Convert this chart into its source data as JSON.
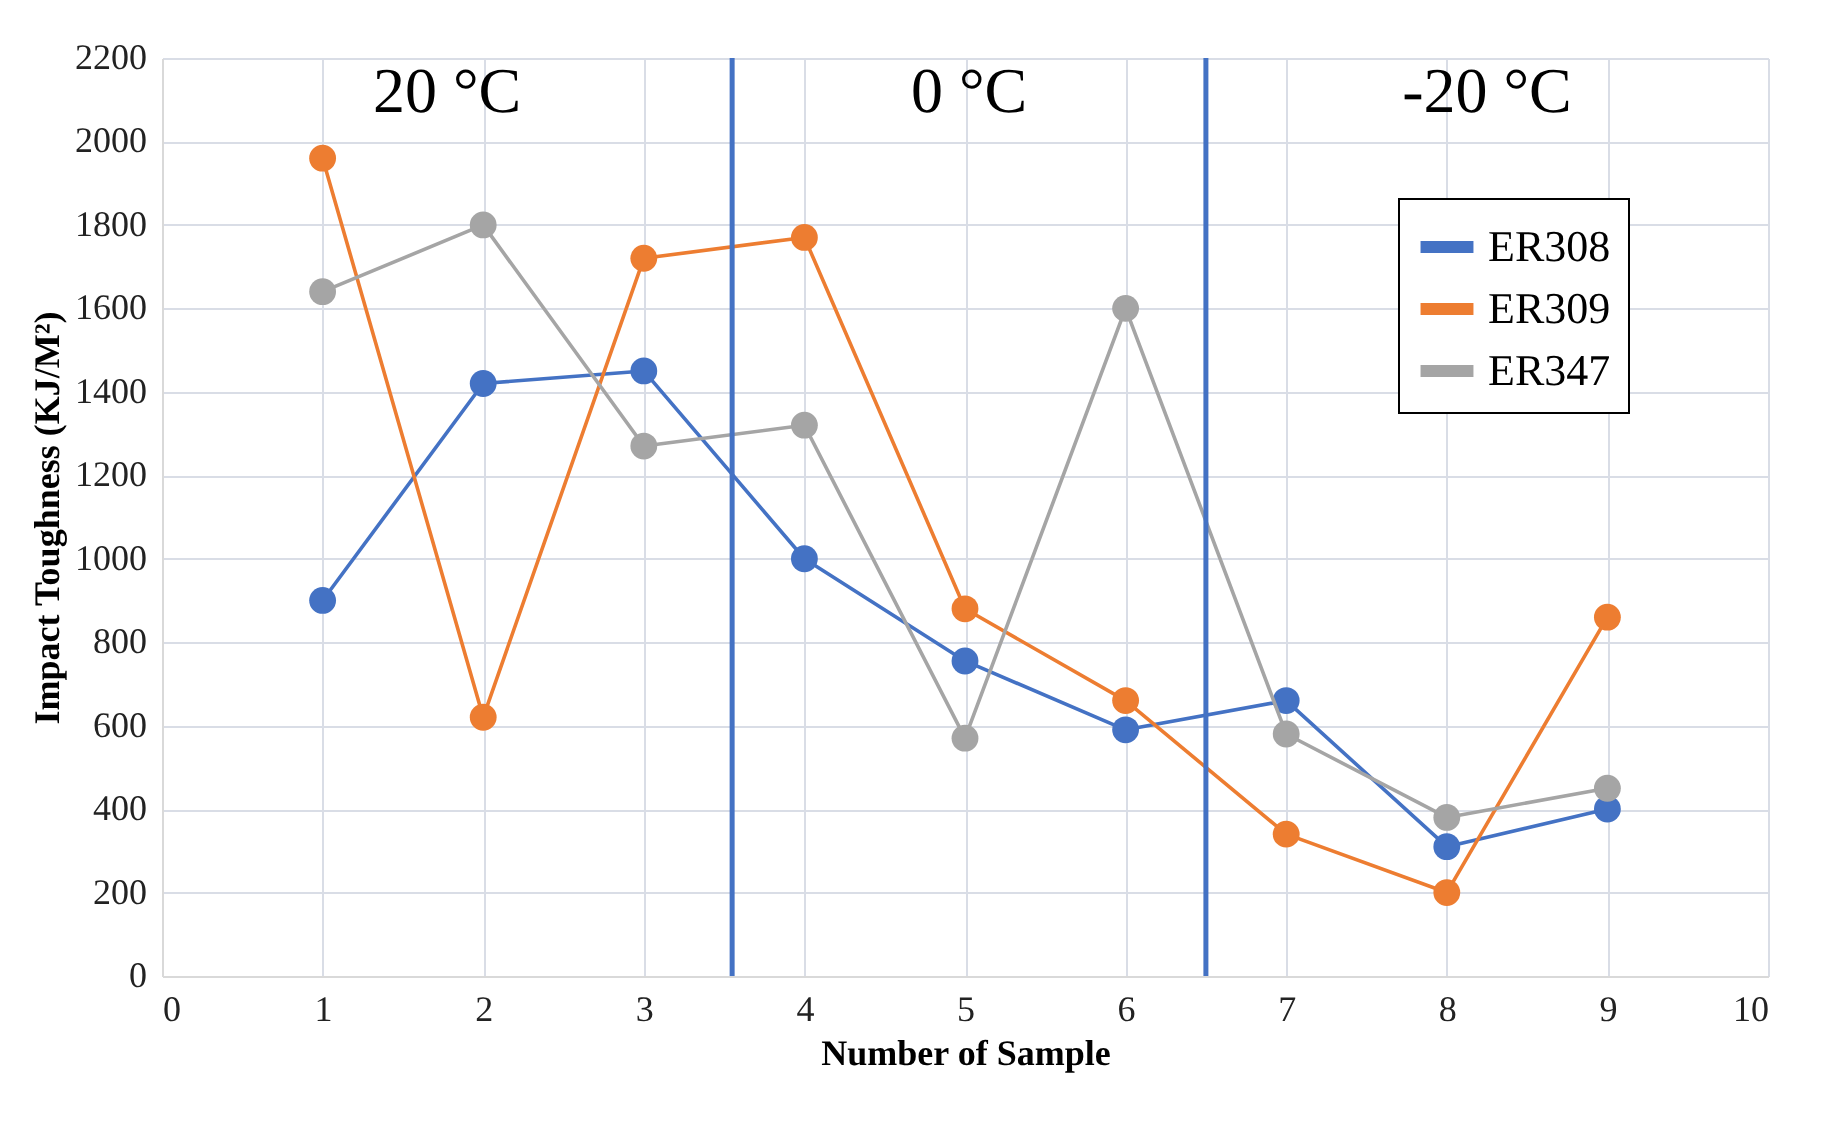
{
  "chart_data": {
    "type": "line",
    "xlabel": "Number of Sample",
    "ylabel": "Impact Toughness (KJ/M²)",
    "x": [
      1,
      2,
      3,
      4,
      5,
      6,
      7,
      8,
      9
    ],
    "series": [
      {
        "name": "ER308",
        "color": "#4472c4",
        "values": [
          900,
          1420,
          1450,
          1000,
          755,
          590,
          660,
          310,
          400
        ]
      },
      {
        "name": "ER309",
        "color": "#ed7d31",
        "values": [
          1960,
          620,
          1720,
          1770,
          880,
          660,
          340,
          200,
          860
        ]
      },
      {
        "name": "ER347",
        "color": "#a5a5a5",
        "values": [
          1640,
          1800,
          1270,
          1320,
          570,
          1600,
          580,
          380,
          450
        ]
      }
    ],
    "xlim": [
      0,
      10
    ],
    "xticks": [
      0,
      1,
      2,
      3,
      4,
      5,
      6,
      7,
      8,
      9,
      10
    ],
    "ylim": [
      0,
      2200
    ],
    "yticks": [
      0,
      200,
      400,
      600,
      800,
      1000,
      1200,
      1400,
      1600,
      1800,
      2000,
      2200
    ],
    "ref_lines": [
      {
        "axis": "x",
        "value": 3.55,
        "color": "#4472c4"
      },
      {
        "axis": "x",
        "value": 6.5,
        "color": "#4472c4"
      }
    ],
    "annotations": [
      "20 °C",
      "0 °C",
      "-20 °C"
    ],
    "grid": true,
    "legend": "top right",
    "marker": "circle",
    "line_style": "solid"
  }
}
